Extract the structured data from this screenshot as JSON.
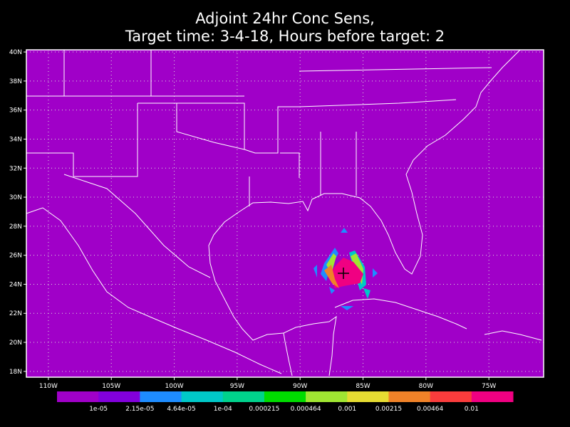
{
  "title": [
    "Adjoint 24hr Conc Sens,",
    "Target time: 3-4-18, Hours before target: 2"
  ],
  "map": {
    "fill": "#a000c8",
    "grid": true,
    "xlim": [
      -111.75,
      -70.65
    ],
    "ylim": [
      17.6,
      40.15
    ],
    "xticks": [
      {
        "value": -110,
        "label": "110W"
      },
      {
        "value": -105,
        "label": "105W"
      },
      {
        "value": -100,
        "label": "100W"
      },
      {
        "value": -95,
        "label": "95W"
      },
      {
        "value": -90,
        "label": "90W"
      },
      {
        "value": -85,
        "label": "85W"
      },
      {
        "value": -80,
        "label": "80W"
      },
      {
        "value": -75,
        "label": "75W"
      }
    ],
    "yticks": [
      {
        "value": 18,
        "label": "18N"
      },
      {
        "value": 20,
        "label": "20N"
      },
      {
        "value": 22,
        "label": "22N"
      },
      {
        "value": 24,
        "label": "24N"
      },
      {
        "value": 26,
        "label": "26N"
      },
      {
        "value": 28,
        "label": "28N"
      },
      {
        "value": 30,
        "label": "30N"
      },
      {
        "value": 32,
        "label": "32N"
      },
      {
        "value": 34,
        "label": "34N"
      },
      {
        "value": 36,
        "label": "36N"
      },
      {
        "value": 38,
        "label": "38N"
      },
      {
        "value": 40,
        "label": "40N"
      }
    ]
  },
  "colorbar": {
    "colors": [
      "#a000c8",
      "#8200dc",
      "#1e8cff",
      "#00c8c8",
      "#00d28c",
      "#00dc00",
      "#a0e632",
      "#e6dc32",
      "#f08228",
      "#fa3c3c",
      "#f00082"
    ],
    "labels": [
      "1e-05",
      "2.15e-05",
      "4.64e-05",
      "1e-04",
      "0.000215",
      "0.000464",
      "0.001",
      "0.00215",
      "0.00464",
      "0.01"
    ]
  }
}
